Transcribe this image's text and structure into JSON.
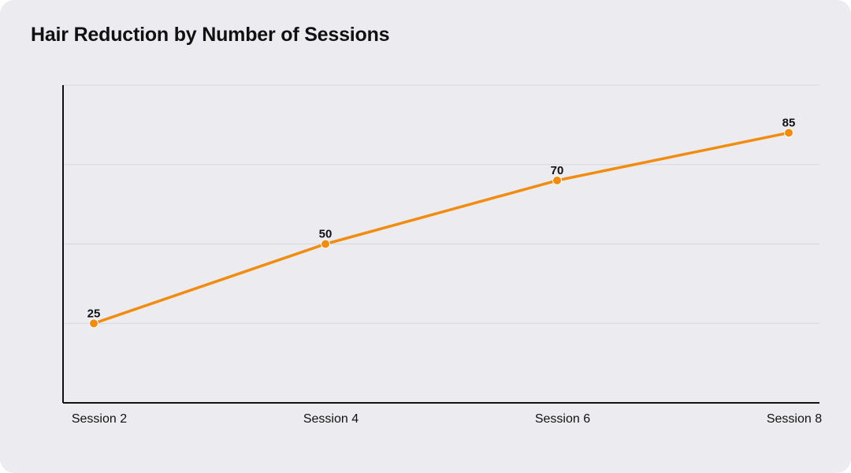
{
  "chart_data": {
    "type": "line",
    "title": "Hair Reduction by Number of Sessions",
    "xlabel": "",
    "ylabel": "",
    "categories": [
      "Session 2",
      "Session 4",
      "Session 6",
      "Session 8"
    ],
    "series": [
      {
        "values": [
          25,
          50,
          70,
          85
        ]
      }
    ],
    "ylim": [
      0,
      100
    ],
    "y_ticks_shown": false,
    "grid": true,
    "data_labels": true,
    "colors": {
      "line": "#f28c0f",
      "grid": "#d6d6dc",
      "axis": "#111111",
      "background": "#ececf0"
    }
  }
}
